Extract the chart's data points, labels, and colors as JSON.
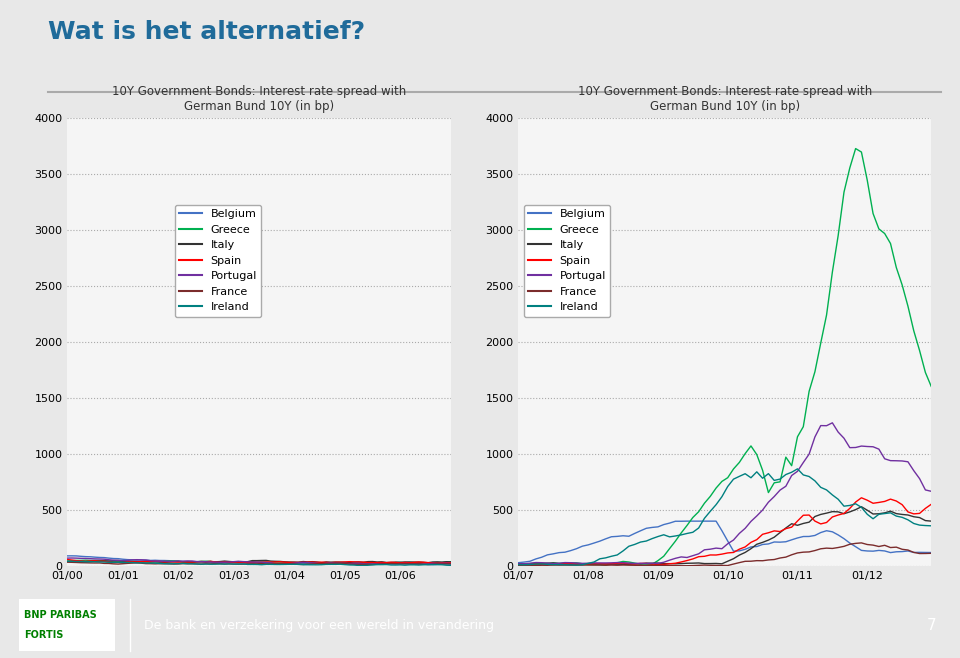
{
  "title": "10Y Government Bonds: Interest rate spread with\nGerman Bund 10Y (in bp)",
  "background_color": "#f0f0f0",
  "plot_bg": "#f5f5f5",
  "countries": [
    "Belgium",
    "Greece",
    "Italy",
    "Spain",
    "Portugal",
    "France",
    "Ireland"
  ],
  "colors": {
    "Belgium": "#4472C4",
    "Greece": "#00B050",
    "Italy": "#333333",
    "Spain": "#FF0000",
    "Portugal": "#7030A0",
    "France": "#7B2C2C",
    "Ireland": "#008080"
  },
  "ylim": [
    0,
    4000
  ],
  "yticks": [
    0,
    500,
    1000,
    1500,
    2000,
    2500,
    3000,
    3500,
    4000
  ],
  "chart1": {
    "xlabel_ticks": [
      "01/00",
      "01/01",
      "01/02",
      "01/03",
      "01/04",
      "01/05",
      "01/06"
    ],
    "n_points": 84
  },
  "chart2": {
    "xlabel_ticks": [
      "01/07",
      "01/08",
      "01/09",
      "01/10",
      "01/11",
      "01/12"
    ],
    "n_points": 72
  },
  "header_text": "Wat is het alternatief?",
  "footer_text": "De bank en verzekering voor een wereld in verandering",
  "page_number": "7"
}
